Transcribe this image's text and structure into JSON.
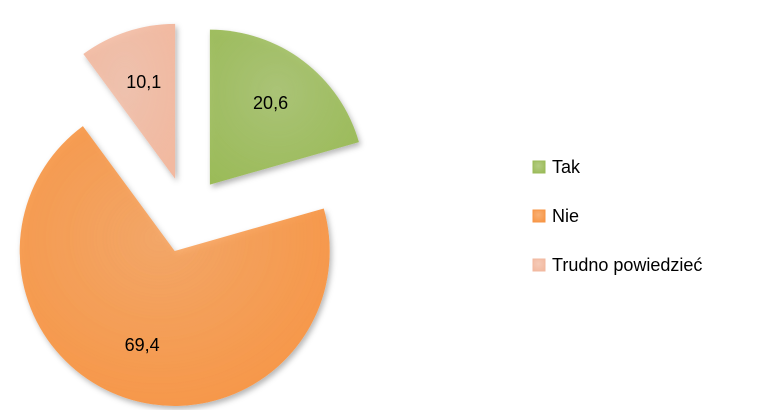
{
  "chart_data": {
    "type": "pie",
    "categories": [
      "Tak",
      "Nie",
      "Trudno powiedzieć"
    ],
    "values": [
      20.6,
      69.4,
      10.1
    ],
    "value_labels": [
      "20,6",
      "69,4",
      "10,1"
    ],
    "colors": [
      "#9bbb59",
      "#f79646",
      "#f2b9a0"
    ],
    "legend": "right"
  }
}
